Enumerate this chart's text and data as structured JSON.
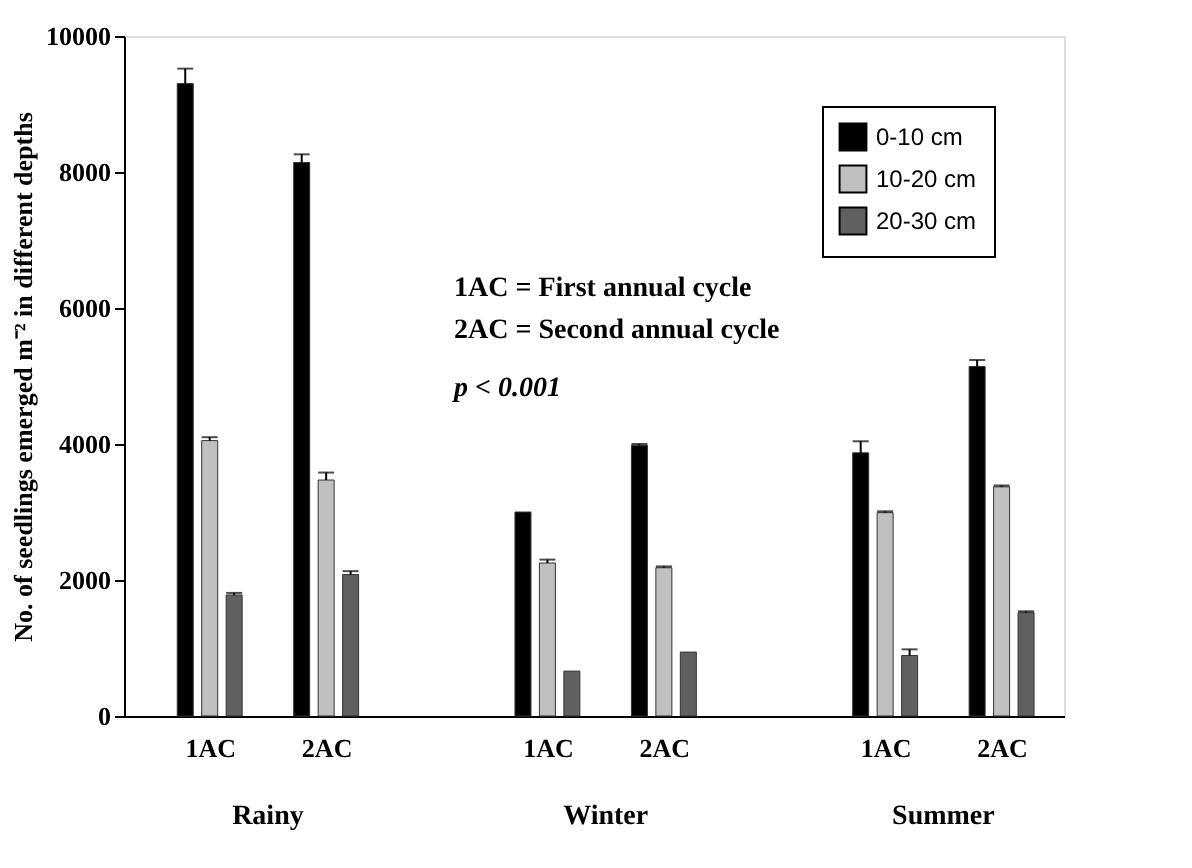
{
  "chart_data": {
    "type": "bar",
    "categories": [
      "1AC",
      "2AC",
      "1AC",
      "2AC",
      "1AC",
      "2AC"
    ],
    "ylabel": "No. of seedlings emerged m⁻² in different depths",
    "ylim": [
      0,
      10000
    ],
    "yticks": [
      0,
      2000,
      4000,
      6000,
      8000,
      10000
    ],
    "grid": false,
    "legend": "top right",
    "series": [
      {
        "name": "0-10 cm",
        "color": "#000000",
        "values": [
          9300,
          8140,
          3000,
          3980,
          3870,
          5140
        ],
        "errors": [
          [
            9300,
            9520
          ],
          [
            8140,
            8260
          ],
          null,
          [
            3980,
            4000
          ],
          [
            3870,
            4040
          ],
          [
            5140,
            5235
          ]
        ]
      },
      {
        "name": "10-20 cm",
        "color": "#c0c0c0",
        "values": [
          4050,
          3470,
          2250,
          2180,
          2990,
          3370
        ],
        "errors": [
          [
            4050,
            4100
          ],
          [
            3470,
            3580
          ],
          [
            2250,
            2300
          ],
          [
            2180,
            2200
          ],
          [
            2990,
            3010
          ],
          [
            3370,
            3390
          ]
        ]
      },
      {
        "name": "20-30 cm",
        "color": "#606060",
        "values": [
          1780,
          2080,
          660,
          940,
          890,
          1520
        ],
        "errors": [
          [
            1780,
            1810
          ],
          [
            2080,
            2130
          ],
          null,
          null,
          [
            890,
            980
          ],
          [
            1520,
            1540
          ]
        ]
      }
    ],
    "annotations": [
      "Rainy",
      "Winter",
      "Summer",
      "1AC = First annual cycle",
      "2AC = Second annual cycle",
      "p < 0.001"
    ]
  }
}
